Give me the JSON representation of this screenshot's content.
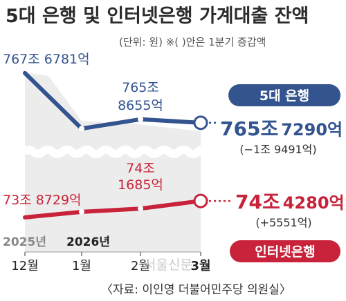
{
  "title": "5대 은행 및 인터넷은행 가계대출 잔액",
  "unit_note": "(단위: 원)   ※( )안은 1분기 증감액",
  "source": "〈자료: 이인영 더불어민주당 의원실〉",
  "watermark": "서울신문",
  "years": [
    "2025년",
    "2026년"
  ],
  "chart_data": {
    "type": "line",
    "categories": [
      "12월",
      "1월",
      "2월",
      "3월"
    ],
    "series": [
      {
        "name": "5대 은행",
        "color": "#33548f",
        "values": [
          7676781,
          7655000,
          7658655,
          7657290
        ],
        "labels": [
          "767조 6781억",
          "",
          "765조|8655억",
          ""
        ],
        "end_value_main": "765조",
        "end_value_sub": "7290억",
        "change": "(−1조 9491억)"
      },
      {
        "name": "인터넷은행",
        "color": "#c8233a",
        "values": [
          738729,
          740600,
          741685,
          744280
        ],
        "labels": [
          "73조 8729억",
          "",
          "74조|1685억",
          ""
        ],
        "end_value_main": "74조",
        "end_value_sub": "4280억",
        "change": "(+5551억)"
      }
    ]
  }
}
